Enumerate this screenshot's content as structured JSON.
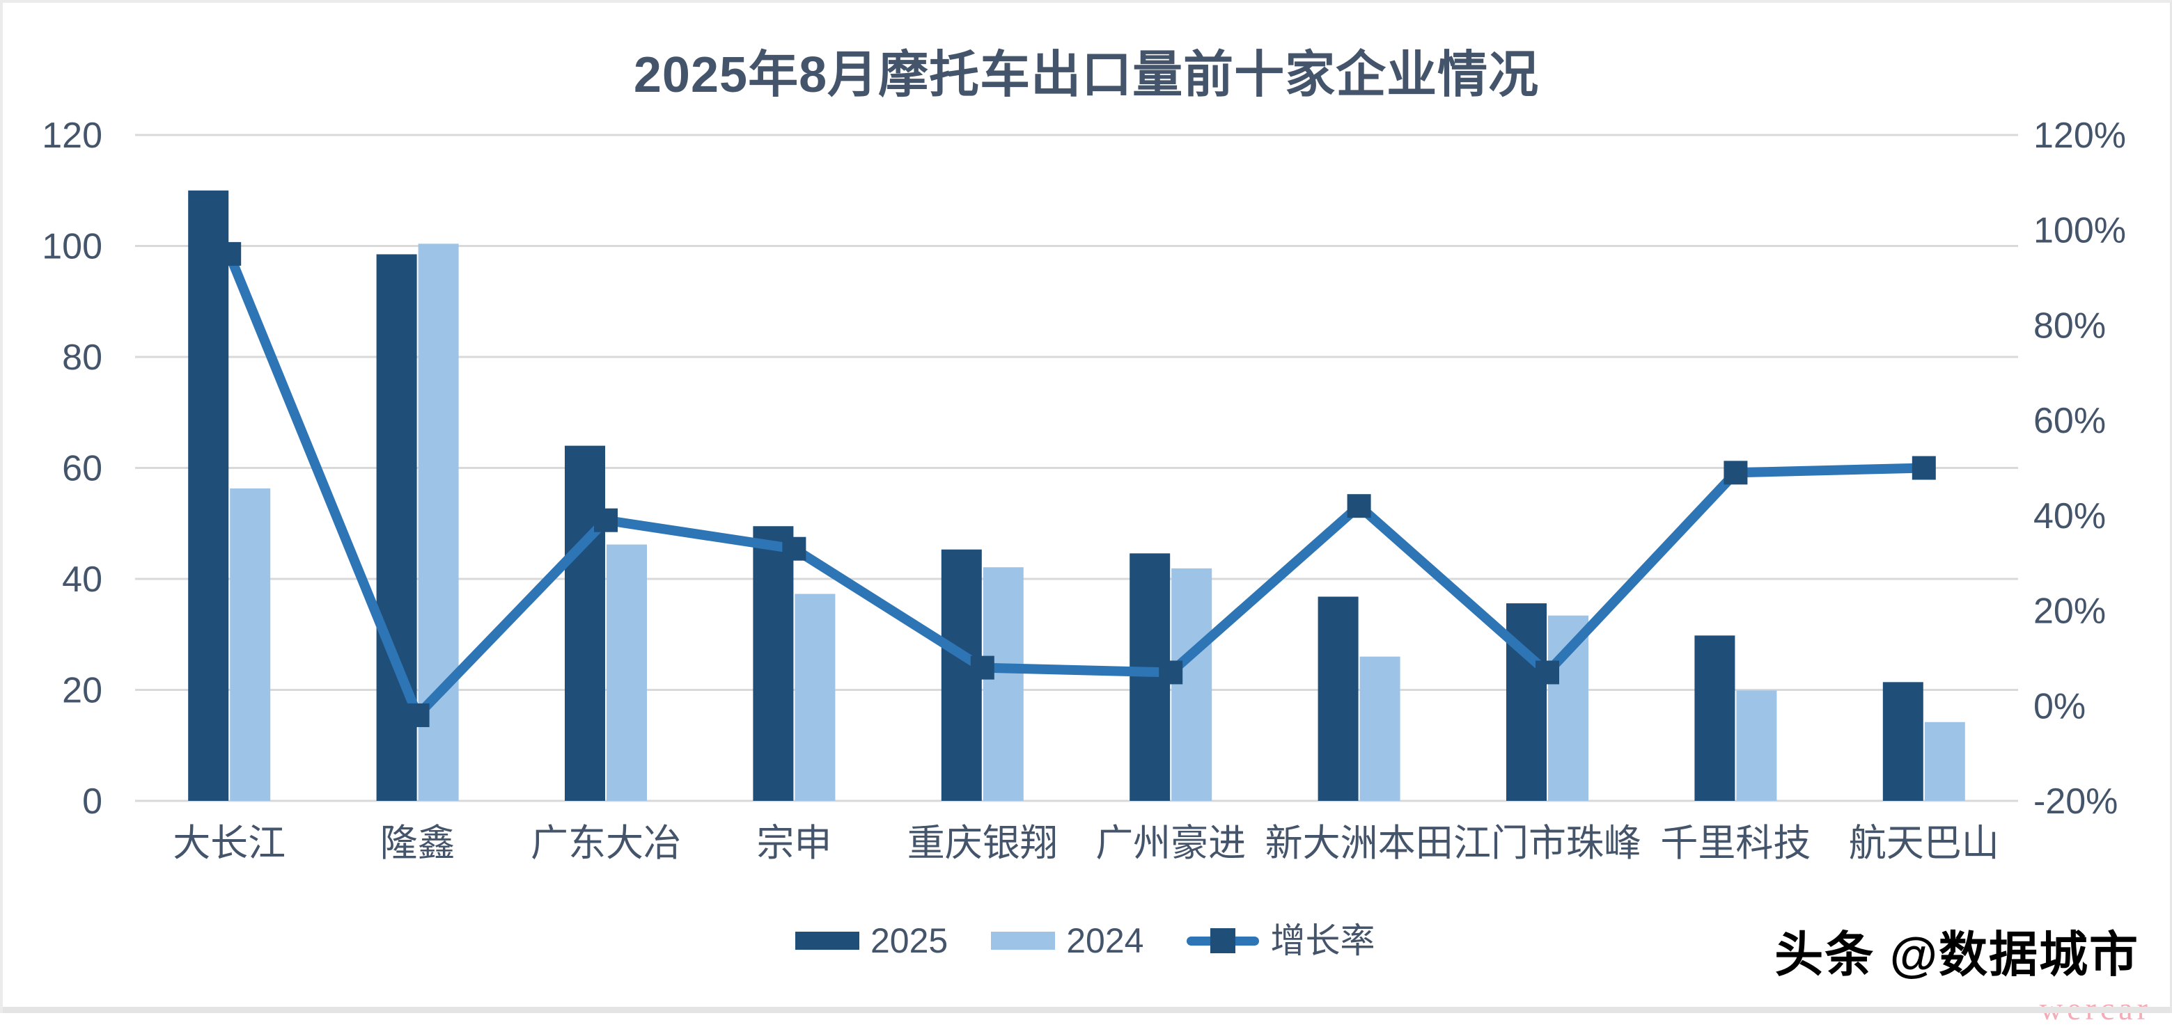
{
  "title": "2025年8月摩托车出口量前十家企业情况",
  "colors": {
    "bar_2025": "#1F4E79",
    "bar_2024": "#9DC3E6",
    "line": "#2E75B6",
    "marker": "#1F4E79",
    "title_text": "#44546A",
    "axis_text": "#44546A",
    "gridline": "#D9D9D9",
    "background": "#FFFFFF"
  },
  "legend": [
    {
      "label": "2025",
      "type": "bar",
      "color_key": "bar_2025"
    },
    {
      "label": "2024",
      "type": "bar",
      "color_key": "bar_2024"
    },
    {
      "label": "增长率",
      "type": "line",
      "color_key": "line"
    }
  ],
  "watermark": {
    "main": "头条 @数据城市",
    "sub": "wercar"
  },
  "chart_data": {
    "type": "combo-bar-line",
    "title": "2025年8月摩托车出口量前十家企业情况",
    "categories": [
      "大长江",
      "隆鑫",
      "广东大冶",
      "宗申",
      "重庆银翔",
      "广州豪进",
      "新大洲本田",
      "江门市珠峰",
      "千里科技",
      "航天巴山"
    ],
    "series": [
      {
        "name": "2025",
        "type": "bar",
        "axis": "left",
        "values": [
          110,
          98.5,
          64,
          49.5,
          45.3,
          44.6,
          36.8,
          35.6,
          29.8,
          21.4
        ]
      },
      {
        "name": "2024",
        "type": "bar",
        "axis": "left",
        "values": [
          56.3,
          100.4,
          46.2,
          37.3,
          42.1,
          41.9,
          26.0,
          33.4,
          19.9,
          14.2
        ]
      },
      {
        "name": "增长率",
        "type": "line",
        "axis": "right",
        "values_pct": [
          95,
          -2,
          39,
          33,
          8,
          7,
          42,
          7,
          49,
          50
        ]
      }
    ],
    "left_axis": {
      "min": 0,
      "max": 120,
      "step": 20,
      "tick_labels": [
        "120",
        "100",
        "80",
        "60",
        "40",
        "20",
        "0"
      ],
      "tick_values": [
        120,
        100,
        80,
        60,
        40,
        20,
        0
      ]
    },
    "right_axis": {
      "min": -20,
      "max": 120,
      "step": 20,
      "tick_labels": [
        "120%",
        "100%",
        "80%",
        "60%",
        "40%",
        "20%",
        "0%",
        "-20%"
      ],
      "tick_values": [
        120,
        100,
        80,
        60,
        40,
        20,
        0,
        -20
      ]
    },
    "grid": "horizontal",
    "legend_position": "bottom"
  }
}
